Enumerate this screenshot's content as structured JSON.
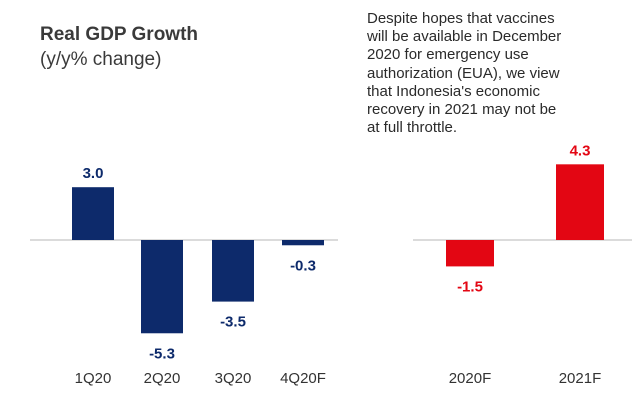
{
  "title": "Real GDP Growth",
  "subtitle": "(y/y% change)",
  "note": "Despite hopes that vaccines will be available in December 2020 for emergency use authorization (EUA), we view that Indonesia's economic recovery in 2021 may not be at full throttle.",
  "colors": {
    "quarterly": "#0d2a6b",
    "forecast": "#e30613"
  },
  "chart_data": [
    {
      "type": "bar",
      "categories": [
        "1Q20",
        "2Q20",
        "3Q20",
        "4Q20F"
      ],
      "values": [
        3.0,
        -5.3,
        -3.5,
        -0.3
      ],
      "labels": [
        "3.0",
        "-5.3",
        "-3.5",
        "-0.3"
      ],
      "title": "Real GDP Growth",
      "subtitle": "(y/y% change)",
      "grid": false
    },
    {
      "type": "bar",
      "categories": [
        "2020F",
        "2021F"
      ],
      "values": [
        -1.5,
        4.3
      ],
      "labels": [
        "-1.5",
        "4.3"
      ],
      "grid": false
    }
  ]
}
